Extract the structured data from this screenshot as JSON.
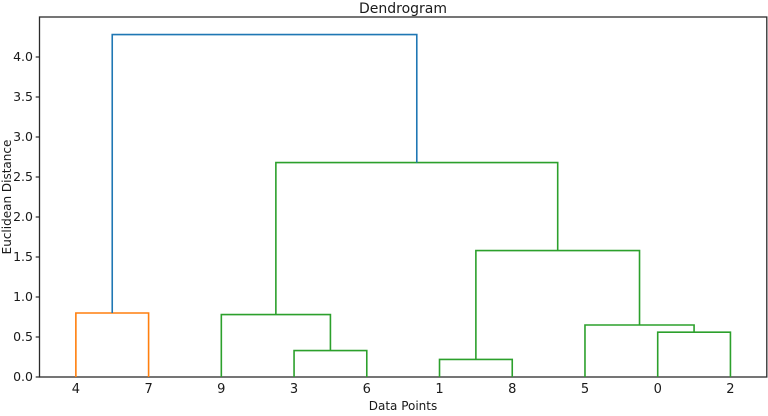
{
  "chart_data": {
    "type": "dendrogram",
    "title": "Dendrogram",
    "xlabel": "Data Points",
    "ylabel": "Euclidean Distance",
    "leaf_order": [
      "4",
      "7",
      "9",
      "3",
      "6",
      "1",
      "8",
      "5",
      "0",
      "2"
    ],
    "yticks": [
      "0.0",
      "0.5",
      "1.0",
      "1.5",
      "2.0",
      "2.5",
      "3.0",
      "3.5",
      "4.0"
    ],
    "ytick_values": [
      0.0,
      0.5,
      1.0,
      1.5,
      2.0,
      2.5,
      3.0,
      3.5,
      4.0
    ],
    "ylim": [
      0,
      4.5
    ],
    "grid": false,
    "legend": "none",
    "colors": {
      "cluster1": "#ff7f0e",
      "cluster2": "#2ca02c",
      "above_threshold": "#1f77b4",
      "spine": "#2b2b2b",
      "text": "#1a1a1a"
    },
    "links": [
      {
        "id": "L18",
        "left": "1",
        "right": "8",
        "height": 0.22,
        "color_key": "cluster2"
      },
      {
        "id": "L36",
        "left": "3",
        "right": "6",
        "height": 0.33,
        "color_key": "cluster2"
      },
      {
        "id": "L02",
        "left": "0",
        "right": "2",
        "height": 0.56,
        "color_key": "cluster2"
      },
      {
        "id": "L502",
        "left": "5",
        "right": "L02",
        "height": 0.65,
        "color_key": "cluster2"
      },
      {
        "id": "L936",
        "left": "9",
        "right": "L36",
        "height": 0.78,
        "color_key": "cluster2"
      },
      {
        "id": "L47",
        "left": "4",
        "right": "7",
        "height": 0.8,
        "color_key": "cluster1"
      },
      {
        "id": "LMID",
        "left": "L18",
        "right": "L502",
        "height": 1.58,
        "color_key": "cluster2"
      },
      {
        "id": "LGRN",
        "left": "L936",
        "right": "LMID",
        "height": 2.68,
        "color_key": "cluster2"
      },
      {
        "id": "ROOT",
        "left": "L47",
        "right": "LGRN",
        "height": 4.28,
        "color_key": "above_threshold"
      }
    ]
  }
}
